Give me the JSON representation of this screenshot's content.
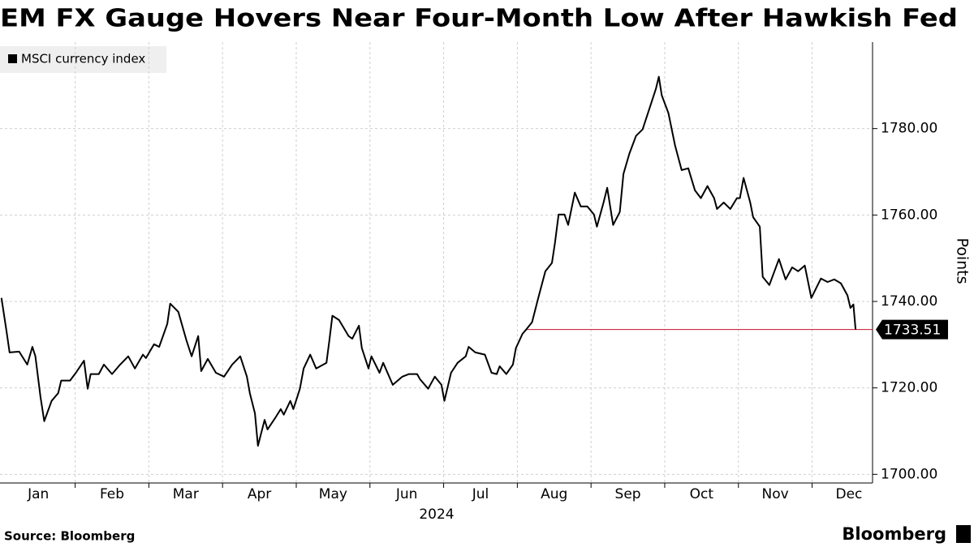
{
  "chart_data": {
    "type": "line",
    "title": "EM FX Gauge Hovers Near Four-Month Low After Hawkish Fed",
    "xlabel": "2024",
    "ylabel": "Points",
    "source": "Source: Bloomberg",
    "brand": "Bloomberg",
    "legend": "top-left",
    "grid": true,
    "xlim": [
      -0.02,
      11.82
    ],
    "xticks": [
      {
        "value": 0.5,
        "label": "Jan"
      },
      {
        "value": 1.5,
        "label": "Feb"
      },
      {
        "value": 2.5,
        "label": "Mar"
      },
      {
        "value": 3.5,
        "label": "Apr"
      },
      {
        "value": 4.5,
        "label": "May"
      },
      {
        "value": 5.5,
        "label": "Jun"
      },
      {
        "value": 6.5,
        "label": "Jul"
      },
      {
        "value": 7.5,
        "label": "Aug"
      },
      {
        "value": 8.5,
        "label": "Sep"
      },
      {
        "value": 9.5,
        "label": "Oct"
      },
      {
        "value": 10.5,
        "label": "Nov"
      },
      {
        "value": 11.5,
        "label": "Dec"
      }
    ],
    "xgrid": [
      1,
      2,
      3,
      4,
      5,
      6,
      7,
      8,
      9,
      10,
      11
    ],
    "ylim": [
      1698,
      1800
    ],
    "yticks": [
      {
        "value": 1700,
        "label": "1700.00"
      },
      {
        "value": 1720,
        "label": "1720.00"
      },
      {
        "value": 1740,
        "label": "1740.00"
      },
      {
        "value": 1760,
        "label": "1760.00"
      },
      {
        "value": 1780,
        "label": "1780.00"
      }
    ],
    "series": [
      {
        "name": "MSCI currency index",
        "color": "#000000",
        "last_value": 1733.51,
        "last_color": "#c8102e",
        "x": [
          0.0,
          0.07,
          0.11,
          0.24,
          0.35,
          0.42,
          0.46,
          0.53,
          0.58,
          0.68,
          0.77,
          0.81,
          0.93,
          1.01,
          1.12,
          1.17,
          1.21,
          1.32,
          1.39,
          1.5,
          1.61,
          1.72,
          1.81,
          1.92,
          1.96,
          2.07,
          2.14,
          2.25,
          2.29,
          2.4,
          2.51,
          2.58,
          2.67,
          2.71,
          2.8,
          2.91,
          3.02,
          3.13,
          3.24,
          3.33,
          3.37,
          3.44,
          3.48,
          3.57,
          3.61,
          3.72,
          3.79,
          3.83,
          3.92,
          3.96,
          4.05,
          4.1,
          4.19,
          4.27,
          4.41,
          4.45,
          4.49,
          4.58,
          4.71,
          4.76,
          4.85,
          4.89,
          4.98,
          5.02,
          5.13,
          5.18,
          5.31,
          5.44,
          5.53,
          5.64,
          5.68,
          5.79,
          5.88,
          5.97,
          6.01,
          6.1,
          6.19,
          6.3,
          6.34,
          6.43,
          6.56,
          6.65,
          6.72,
          6.76,
          6.85,
          6.94,
          6.98,
          7.07,
          7.11,
          7.2,
          7.29,
          7.38,
          7.47,
          7.51,
          7.56,
          7.64,
          7.69,
          7.78,
          7.86,
          7.95,
          8.04,
          8.08,
          8.17,
          8.22,
          8.3,
          8.39,
          8.44,
          8.52,
          8.61,
          8.7,
          8.79,
          8.88,
          8.92,
          8.96,
          9.05,
          9.14,
          9.23,
          9.32,
          9.41,
          9.49,
          9.58,
          9.67,
          9.71,
          9.8,
          9.89,
          9.98,
          10.02,
          10.07,
          10.16,
          10.2,
          10.29,
          10.33,
          10.42,
          10.55,
          10.64,
          10.73,
          10.81,
          10.9,
          10.99,
          11.12,
          11.21,
          11.3,
          11.39,
          11.48,
          11.52,
          11.56,
          11.59
        ],
        "values": [
          1740.8,
          1732.9,
          1728.2,
          1728.4,
          1725.4,
          1729.5,
          1727.3,
          1717.9,
          1712.3,
          1717.0,
          1718.8,
          1721.7,
          1721.7,
          1723.5,
          1726.3,
          1719.8,
          1723.2,
          1723.2,
          1725.4,
          1723.2,
          1725.4,
          1727.3,
          1724.5,
          1727.7,
          1726.9,
          1730.1,
          1729.5,
          1734.8,
          1739.5,
          1737.6,
          1731.0,
          1727.3,
          1732.0,
          1723.9,
          1726.7,
          1723.5,
          1722.6,
          1725.4,
          1727.3,
          1722.6,
          1718.8,
          1714.1,
          1706.6,
          1712.6,
          1710.4,
          1713.2,
          1715.1,
          1713.8,
          1717.0,
          1715.1,
          1719.8,
          1724.5,
          1727.7,
          1724.5,
          1725.8,
          1731.0,
          1736.7,
          1735.7,
          1732.0,
          1731.4,
          1734.4,
          1729.2,
          1724.5,
          1727.3,
          1723.5,
          1725.8,
          1720.7,
          1722.6,
          1723.2,
          1723.2,
          1722.0,
          1719.8,
          1722.6,
          1720.7,
          1717.0,
          1723.5,
          1725.8,
          1727.3,
          1729.5,
          1728.2,
          1727.7,
          1723.5,
          1723.2,
          1725.0,
          1723.2,
          1725.4,
          1729.2,
          1732.5,
          1733.3,
          1735.2,
          1741.2,
          1747.0,
          1748.9,
          1753.5,
          1760.1,
          1760.1,
          1757.7,
          1765.2,
          1762.0,
          1762.0,
          1760.1,
          1757.3,
          1762.9,
          1766.3,
          1757.7,
          1760.7,
          1769.5,
          1774.2,
          1778.3,
          1779.8,
          1784.5,
          1789.2,
          1792.0,
          1787.7,
          1783.6,
          1776.1,
          1770.4,
          1770.8,
          1765.7,
          1763.9,
          1766.7,
          1763.9,
          1761.4,
          1762.9,
          1761.4,
          1763.9,
          1763.9,
          1768.6,
          1762.9,
          1759.5,
          1757.3,
          1745.7,
          1743.8,
          1749.8,
          1745.1,
          1747.9,
          1747.0,
          1748.3,
          1740.8,
          1745.3,
          1744.5,
          1745.1,
          1744.2,
          1741.4,
          1738.5,
          1739.3,
          1733.51
        ]
      }
    ]
  }
}
